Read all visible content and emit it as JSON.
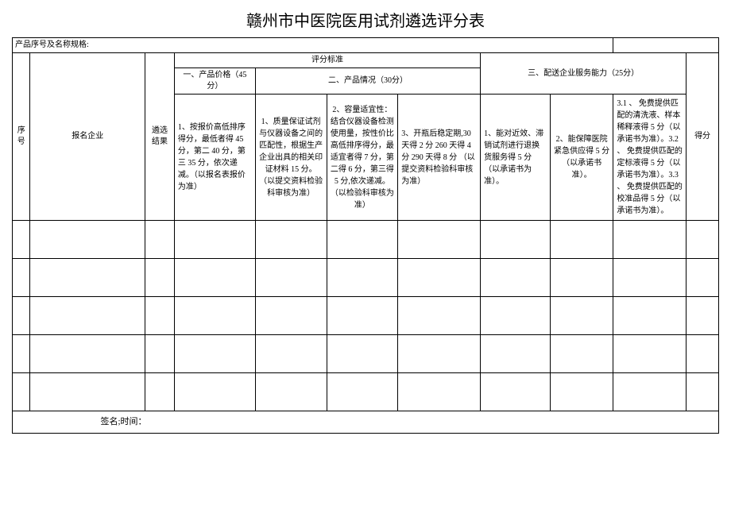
{
  "title": "赣州市中医院医用试剂遴选评分表",
  "product_label": "产品序号及名称规格:",
  "headers": {
    "seq": "序号",
    "company": "报名企业",
    "result": "遴选结果",
    "criteria_std": "评分标准",
    "section1": "一、产品价格（45分）",
    "section2": "二、产品情况（30分）",
    "section3": "三、配送企业服务能力（25分）",
    "score": "得分"
  },
  "criteria": {
    "c1": "1、按报价高低排序得分，最低者得 45 分，第二 40 分，第三 35 分，依次递减。（以报名表报价为准）",
    "c2": "1、质量保证试剂与仪器设备之间的匹配性，根据生产企业出具的相关印证材料 15 分。\n（以提交资料检验科审核为准）",
    "c3": "2、容量适宜性：结合仪器设备检测使用量，按性价比高低排序得分，最适宜者得 7 分，第二得 6 分，第三得 5 分,依次递减。\n（以检验科审核为准）",
    "c4": "3、开瓶后稳定期,30 天得 2 分 260 天得 4 分 290 天得 8 分\n（以提交资料检验科审核为准）",
    "c5": "1、能对近效、滞销试剂进行退换货服务得 5 分（以承诺书为准）。",
    "c6": "2、能保障医院紧急供应得 5 分（以承诺书准）。",
    "c7": "3.1 、 免费提供匹配的清洗液、样本稀释液得 5 分（以承诺书为准）。3.2 、 免费提供匹配的定标液得 5 分（以承诺书为准）。3.3 、 免费提供匹配的校准品得 5 分（以承诺书为准）。"
  },
  "footer": "签名;时间："
}
